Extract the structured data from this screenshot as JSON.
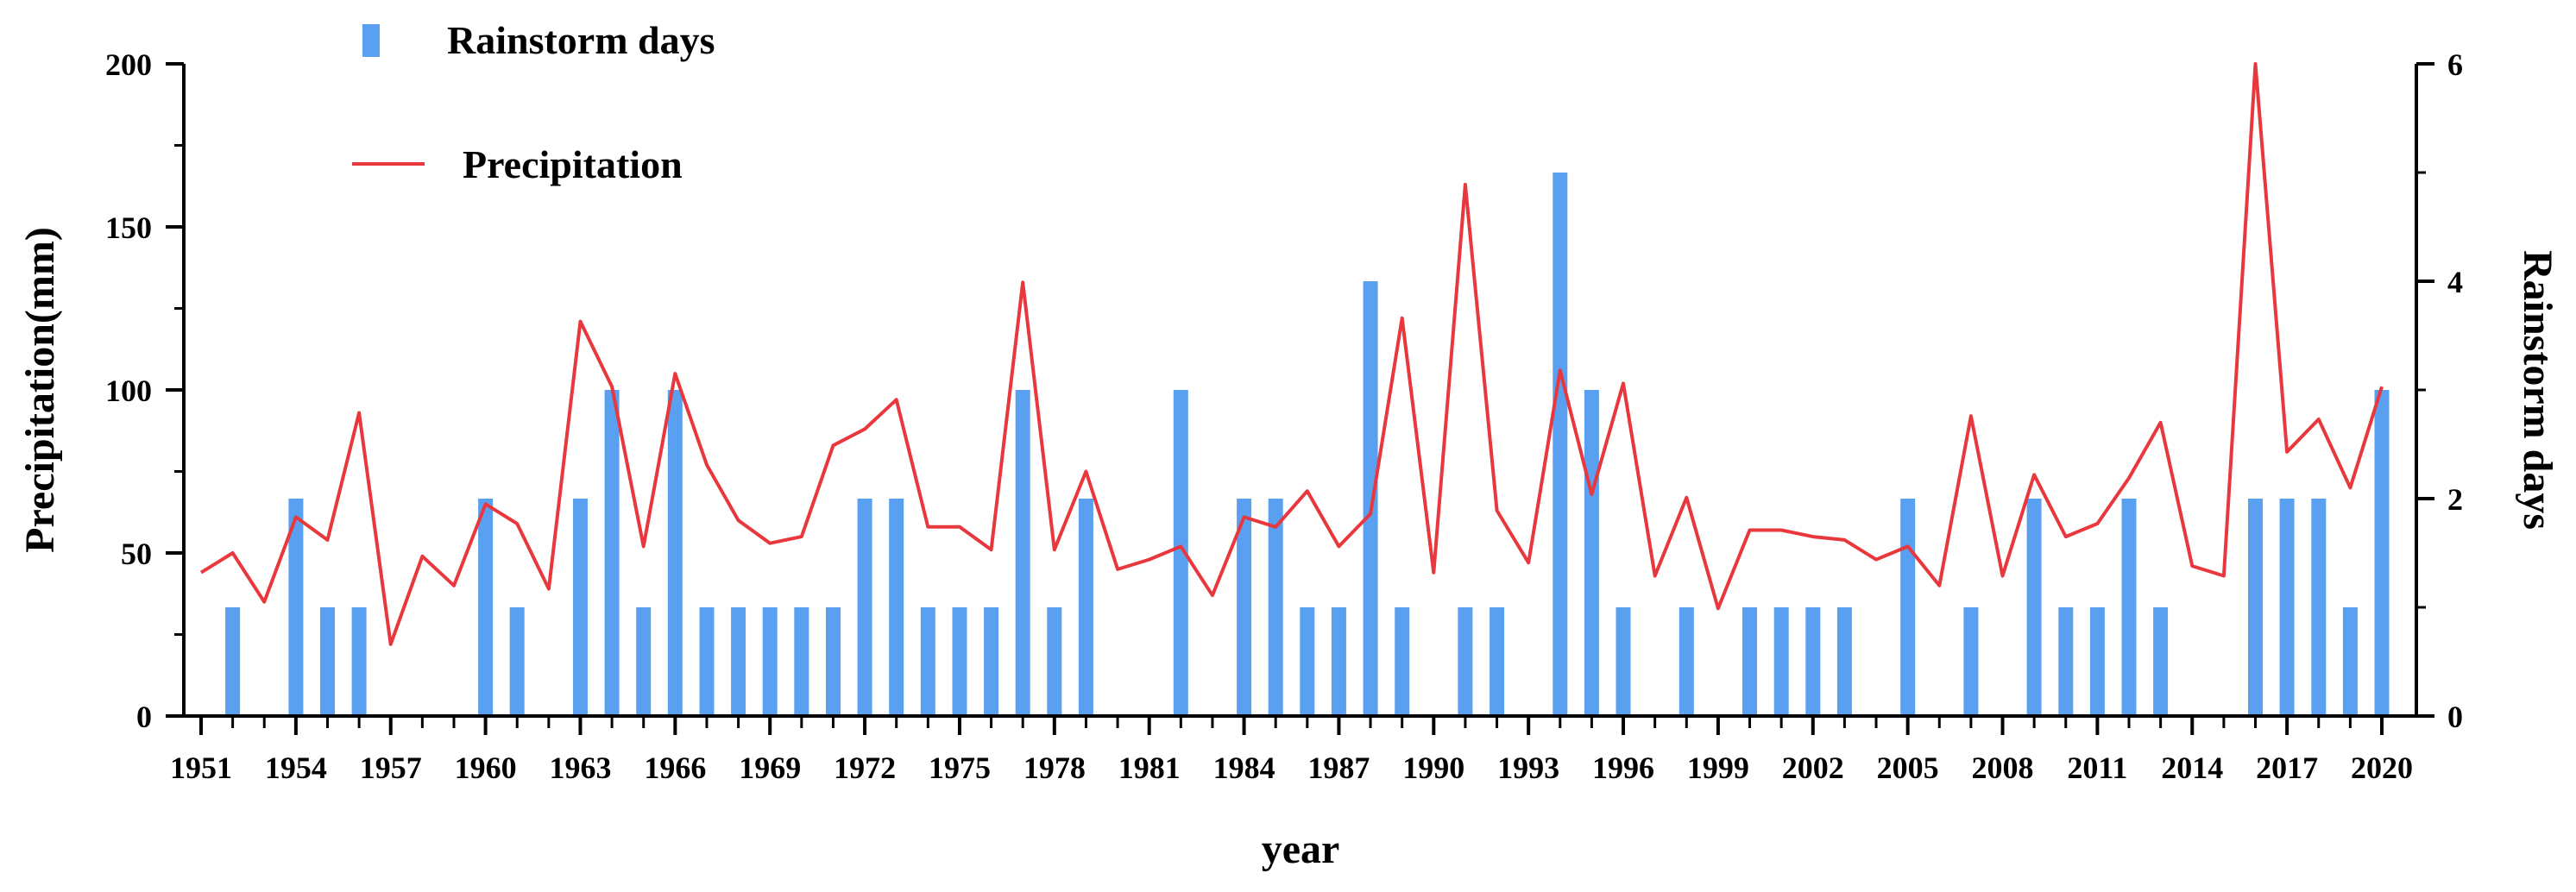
{
  "chart_data": {
    "type": "bar+line",
    "xlabel": "year",
    "ylabel_left": "Precipitation(mm)",
    "ylabel_right": "Rainstorm days",
    "ylim_left": [
      0,
      200
    ],
    "ylim_right": [
      0,
      6
    ],
    "yticks_left": [
      "0",
      "50",
      "100",
      "150",
      "200"
    ],
    "yticks_right": [
      "0",
      "2",
      "4",
      "6"
    ],
    "xticks": [
      "1951",
      "1954",
      "1957",
      "1960",
      "1963",
      "1966",
      "1969",
      "1972",
      "1975",
      "1978",
      "1981",
      "1984",
      "1987",
      "1990",
      "1993",
      "1996",
      "1999",
      "2002",
      "2005",
      "2008",
      "2011",
      "2014",
      "2017",
      "2020"
    ],
    "x": [
      1951,
      1952,
      1953,
      1954,
      1955,
      1956,
      1957,
      1958,
      1959,
      1960,
      1961,
      1962,
      1963,
      1964,
      1965,
      1966,
      1967,
      1968,
      1969,
      1970,
      1971,
      1972,
      1973,
      1974,
      1975,
      1976,
      1977,
      1978,
      1979,
      1980,
      1981,
      1982,
      1983,
      1984,
      1985,
      1986,
      1987,
      1988,
      1989,
      1990,
      1991,
      1992,
      1993,
      1994,
      1995,
      1996,
      1997,
      1998,
      1999,
      2000,
      2001,
      2002,
      2003,
      2004,
      2005,
      2006,
      2007,
      2008,
      2009,
      2010,
      2011,
      2012,
      2013,
      2014,
      2015,
      2016,
      2017,
      2018,
      2019,
      2020
    ],
    "series": [
      {
        "name": "Rainstorm days",
        "type": "bar",
        "axis": "right",
        "color": "#5aa0f0",
        "values": [
          0,
          1,
          0,
          2,
          1,
          1,
          0,
          0,
          0,
          2,
          1,
          0,
          2,
          3,
          1,
          3,
          1,
          1,
          1,
          1,
          1,
          2,
          2,
          1,
          1,
          1,
          3,
          1,
          2,
          0,
          0,
          3,
          0,
          2,
          2,
          1,
          1,
          4,
          1,
          0,
          1,
          1,
          0,
          5,
          3,
          1,
          0,
          1,
          0,
          1,
          1,
          1,
          1,
          0,
          2,
          0,
          1,
          0,
          2,
          1,
          1,
          2,
          1,
          0,
          0,
          2,
          2,
          2,
          1,
          3
        ]
      },
      {
        "name": "Precipitation",
        "type": "line",
        "axis": "left",
        "color": "#e8383d",
        "values": [
          44,
          50,
          35,
          61,
          54,
          93,
          22,
          49,
          40,
          65,
          59,
          39,
          121,
          101,
          52,
          105,
          77,
          60,
          53,
          55,
          83,
          88,
          97,
          58,
          58,
          51,
          133,
          51,
          75,
          45,
          48,
          52,
          37,
          61,
          58,
          69,
          52,
          62,
          122,
          44,
          163,
          63,
          47,
          106,
          68,
          102,
          43,
          67,
          33,
          57,
          57,
          55,
          54,
          48,
          52,
          40,
          92,
          43,
          74,
          55,
          59,
          73,
          90,
          46,
          43,
          200,
          81,
          91,
          70,
          101
        ]
      }
    ],
    "legend": {
      "position": "top-left",
      "entries": [
        "Rainstorm days",
        "Precipitation"
      ]
    }
  }
}
